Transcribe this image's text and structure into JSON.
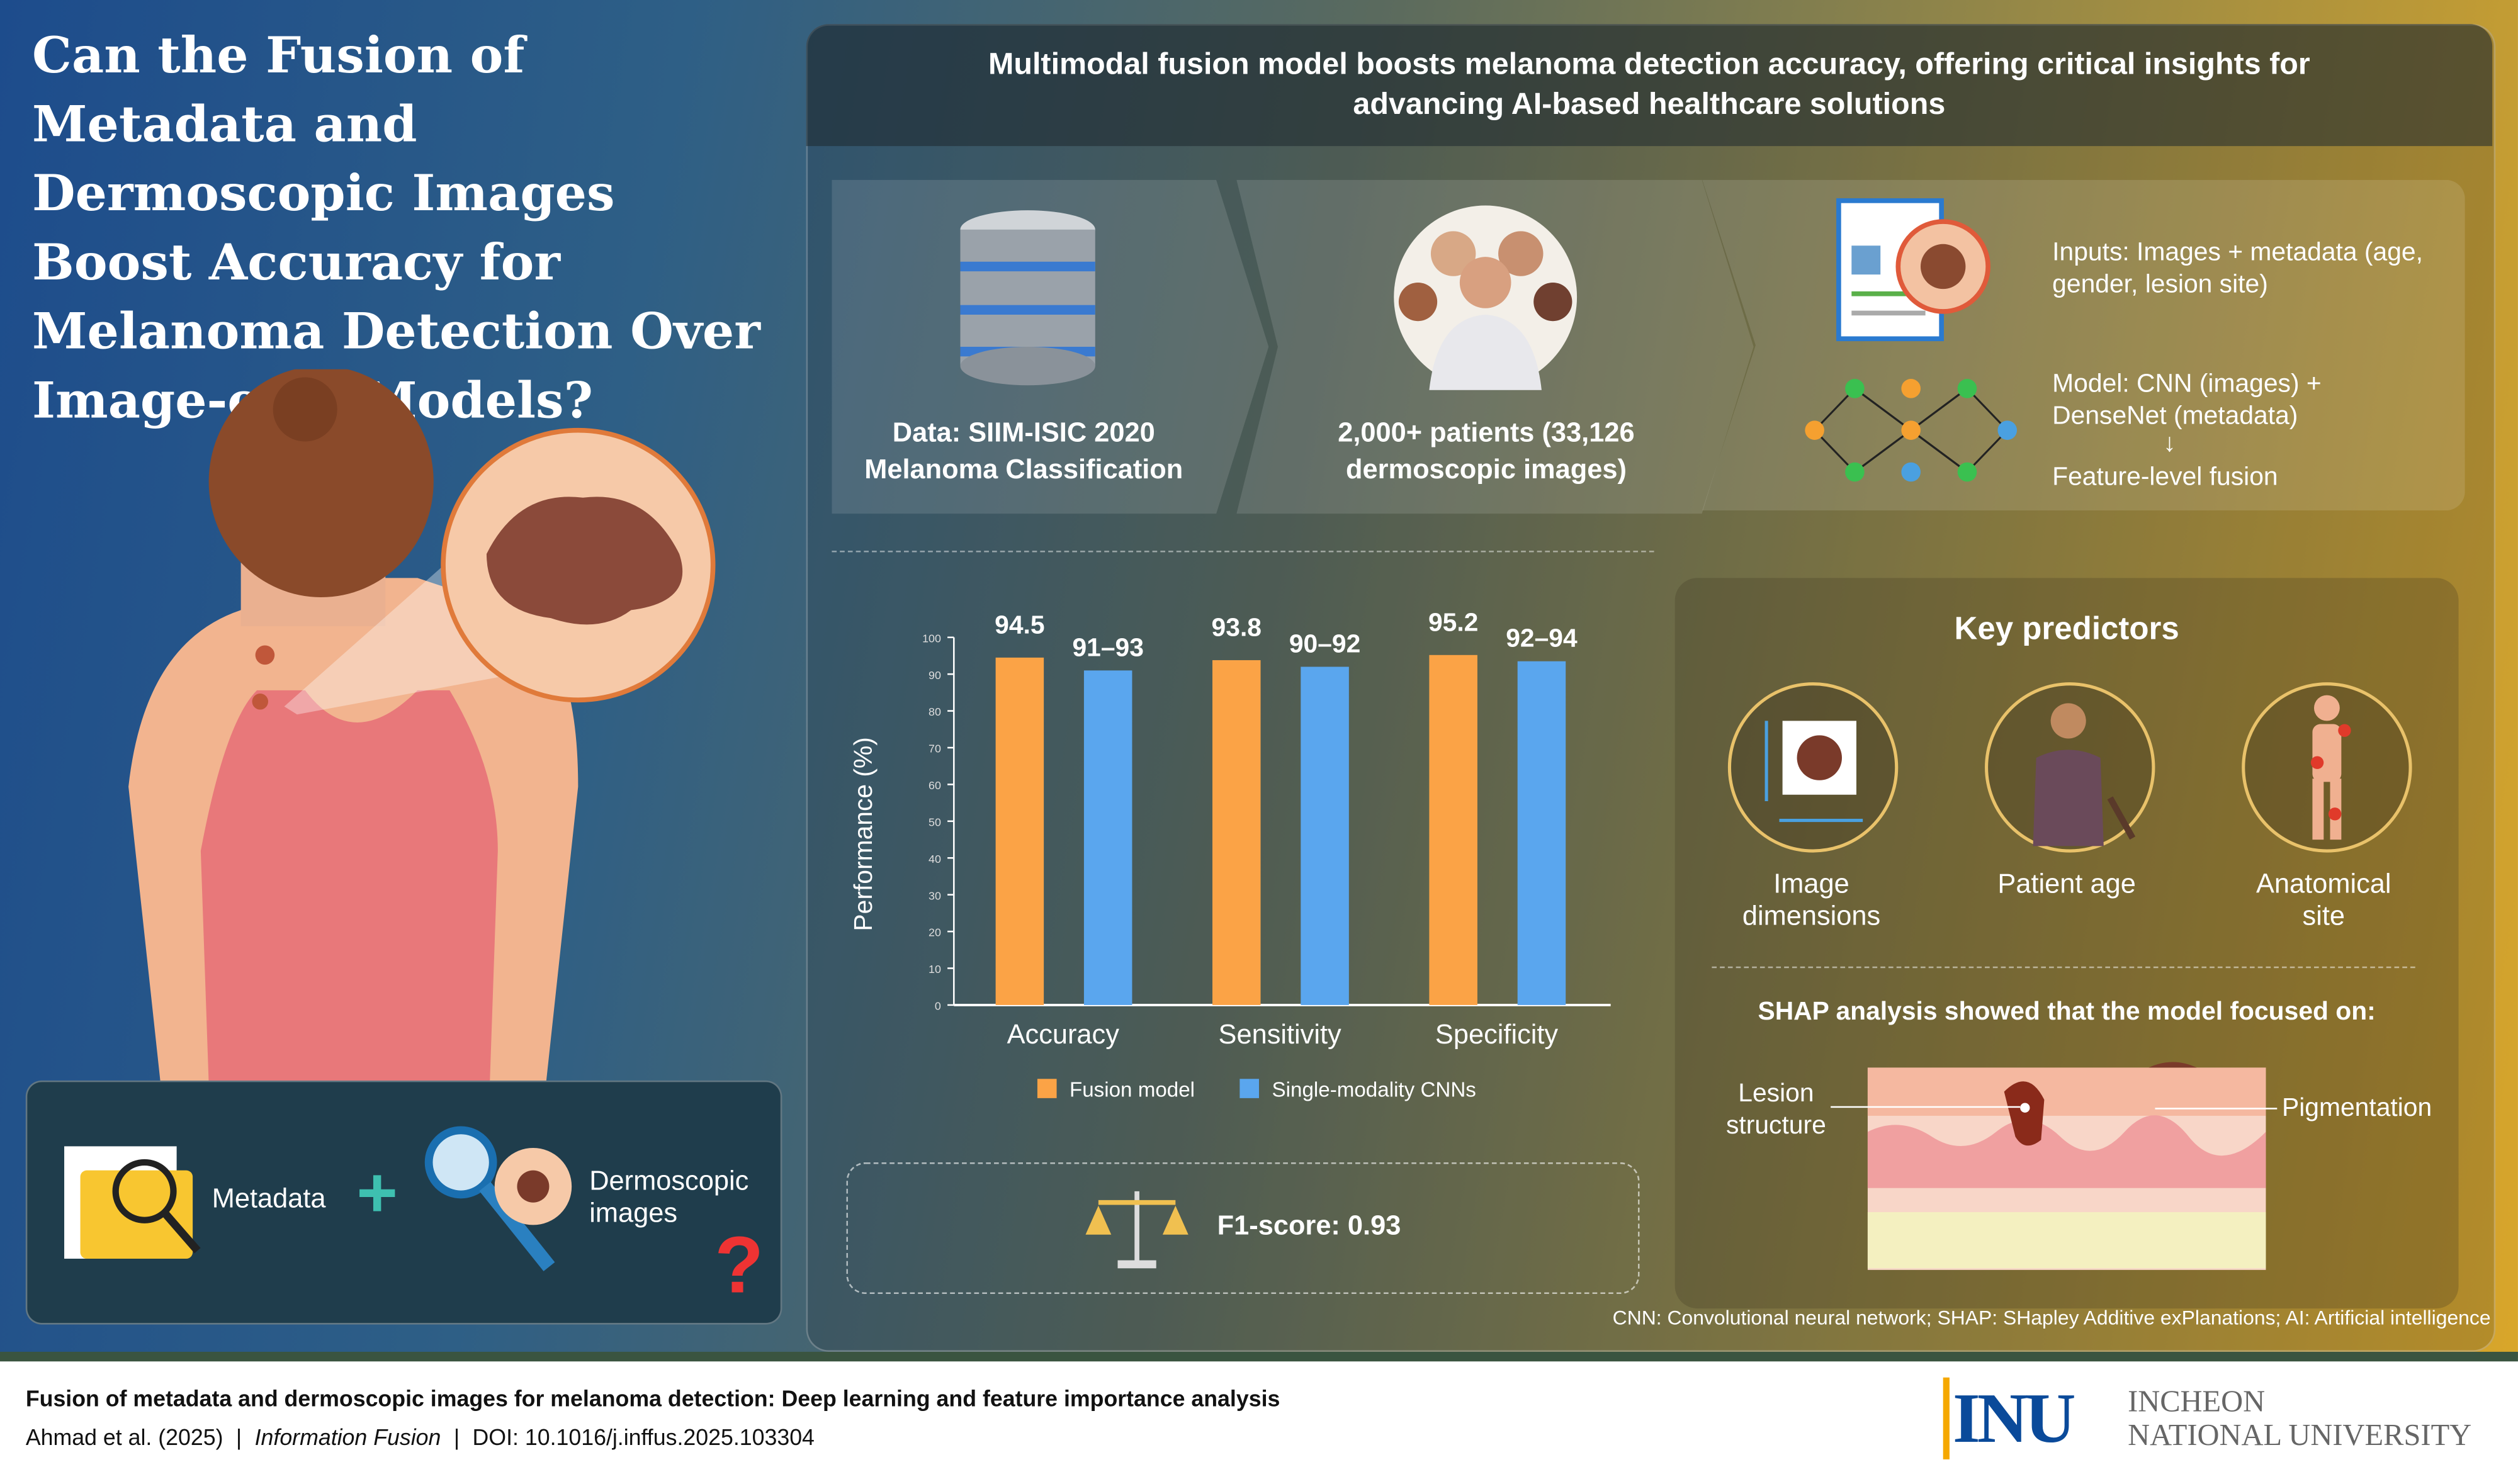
{
  "title": "Can the Fusion of Metadata and Dermoscopic Images Boost Accuracy for Melanoma Detection Over Image-only Models?",
  "left_box": {
    "metadata": "Metadata",
    "plus": "+",
    "images": "Dermoscopic images",
    "question": "?"
  },
  "header": "Multimodal fusion model boosts melanoma detection accuracy, offering critical insights for advancing AI-based healthcare solutions",
  "flow": {
    "data_label": "Data: SIIM-ISIC 2020 Melanoma Classification",
    "patients_label": "2,000+ patients (33,126 dermoscopic images)",
    "inputs": "Inputs: Images + metadata (age, gender, lesion site)",
    "model": "Model: CNN (images) + DenseNet (metadata)",
    "arrow": "↓",
    "fusion": "Feature-level fusion"
  },
  "chart_data": {
    "type": "bar",
    "categories": [
      "Accuracy",
      "Sensitivity",
      "Specificity"
    ],
    "ylabel": "Performance (%)",
    "ylim": [
      0,
      100
    ],
    "yticks": [
      0,
      10,
      20,
      30,
      40,
      50,
      60,
      70,
      80,
      90,
      100
    ],
    "legend_position": "bottom",
    "series": [
      {
        "name": "Fusion model",
        "color": "#fba346",
        "values": [
          94.5,
          93.8,
          95.2
        ],
        "labels": [
          "94.5",
          "93.8",
          "95.2"
        ]
      },
      {
        "name": "Single-modality CNNs",
        "color": "#5aa6ee",
        "values": [
          91,
          92,
          93.5
        ],
        "labels": [
          "91–93",
          "90–92",
          "92–94"
        ]
      }
    ]
  },
  "f1": "F1-score: 0.93",
  "predictors": {
    "title": "Key predictors",
    "items": [
      "Image dimensions",
      "Patient age",
      "Anatomical site"
    ]
  },
  "shap": {
    "title": "SHAP analysis showed that the model focused on:",
    "lesion": "Lesion structure",
    "pigment": "Pigmentation"
  },
  "footnote": "CNN: Convolutional neural network; SHAP: SHapley Additive exPlanations; AI: Artificial intelligence",
  "footer": {
    "paper_title": "Fusion of metadata and dermoscopic images for melanoma detection: Deep learning and feature importance analysis",
    "authors": "Ahmad et al. (2025)",
    "sep": "|",
    "journal": "Information Fusion",
    "doi": "DOI: 10.1016/j.inffus.2025.103304",
    "logo_mark": "INU",
    "univ1": "INCHEON",
    "univ2": "NATIONAL UNIVERSITY"
  }
}
